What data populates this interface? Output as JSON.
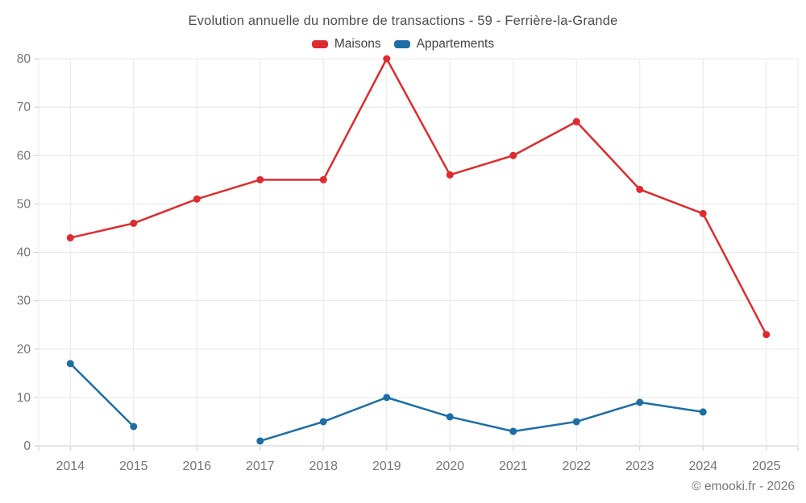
{
  "page": {
    "title": "Evolution annuelle du nombre de transactions - 59 - Ferrière-la-Grande",
    "footer": "© emooki.fr - 2026"
  },
  "legend": {
    "items": [
      {
        "label": "Maisons",
        "color": "#de2b2e"
      },
      {
        "label": "Appartements",
        "color": "#1c6ea4"
      }
    ]
  },
  "chart_data": {
    "type": "line",
    "title": "Evolution annuelle du nombre de transactions - 59 - Ferrière-la-Grande",
    "categories": [
      "2014",
      "2015",
      "2016",
      "2017",
      "2018",
      "2019",
      "2020",
      "2021",
      "2022",
      "2023",
      "2024",
      "2025"
    ],
    "series": [
      {
        "name": "Maisons",
        "color": "#de2b2e",
        "values": [
          43,
          46,
          51,
          55,
          55,
          80,
          56,
          60,
          67,
          53,
          48,
          23
        ]
      },
      {
        "name": "Appartements",
        "color": "#1c6ea4",
        "values": [
          17,
          4,
          null,
          1,
          5,
          10,
          6,
          3,
          5,
          9,
          7,
          null
        ]
      }
    ],
    "xlabel": "",
    "ylabel": "",
    "ylim": [
      0,
      80
    ],
    "ytick_interval": 10,
    "yticks": [
      0,
      10,
      20,
      30,
      40,
      50,
      60,
      70,
      80
    ],
    "grid": true,
    "legend_position": "top",
    "marker": "circle",
    "colors": {
      "grid": "#e8e8e8",
      "axis": "#cccccc",
      "tick": "#cccccc",
      "tick_label": "#757575",
      "title": "#4d4d4d",
      "legend_text": "#424242",
      "background": "#ffffff"
    }
  }
}
